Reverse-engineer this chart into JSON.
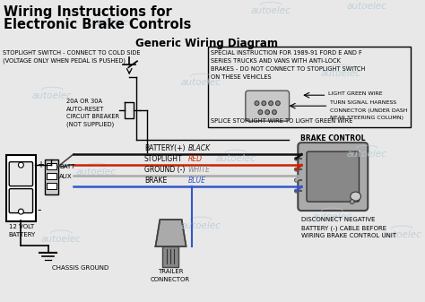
{
  "title1": "Wiring Instructions for",
  "title2": "Electronic Brake Controls",
  "subtitle": "Generic Wiring Diagram",
  "bg_color": "#e8e8e8",
  "watermark_color": "#b8ccd8",
  "watermark_text": "autoelec",
  "box_special_text": [
    "SPECIAL INSTRUCTION FOR 1989-91 FORD E AND F",
    "SERIES TRUCKS AND VANS WITH ANTI-LOCK",
    "BRAKES - DO NOT CONNECT TO STOPLIGHT SWITCH",
    "ON THESE VEHICLES"
  ],
  "light_green_label": "LIGHT GREEN WIRE",
  "turn_signal_label": [
    "TURN SIGNAL HARNESS",
    "CONNECTOR (UNDER DASH",
    "NEAR STEERING COLUMN)"
  ],
  "splice_label": "SPLICE STOPLIGHT WIRE TO LIGHT GREEN WIRE",
  "stoplight_switch_label1": "STOPLIGHT SWITCH - CONNECT TO COLD SIDE",
  "stoplight_switch_label2": "(VOLTAGE ONLY WHEN PEDAL IS PUSHED)",
  "circuit_breaker_label": [
    "20A OR 30A",
    "AUTO-RESET",
    "CIRCUIT BREAKER",
    "(NOT SUPPLIED)"
  ],
  "battery_label": [
    "12 VOLT",
    "BATTERY"
  ],
  "chassis_label": "CHASSIS GROUND",
  "batt_label": "BATT",
  "aux_label": "AUX",
  "brake_control_label": "BRAKE CONTROL",
  "trailer_label": [
    "TRAILER",
    "CONNECTOR"
  ],
  "disconnect_label": [
    "DISCONNECT NEGATIVE",
    "BATTERY (-) CABLE BEFORE",
    "WIRING BRAKE CONTROL UNIT"
  ],
  "wire_labels": [
    "BATTERY(+)",
    "STOPLIGHT",
    "GROUND (-)",
    "BRAKE"
  ],
  "wire_color_names": [
    "BLACK",
    "RED",
    "WHITE",
    "BLUE"
  ],
  "wire_colors": [
    "#111111",
    "#cc2200",
    "#aaaaaa",
    "#3355cc"
  ],
  "wire_name_colors": [
    "#111111",
    "#cc2200",
    "#888888",
    "#3355cc"
  ]
}
